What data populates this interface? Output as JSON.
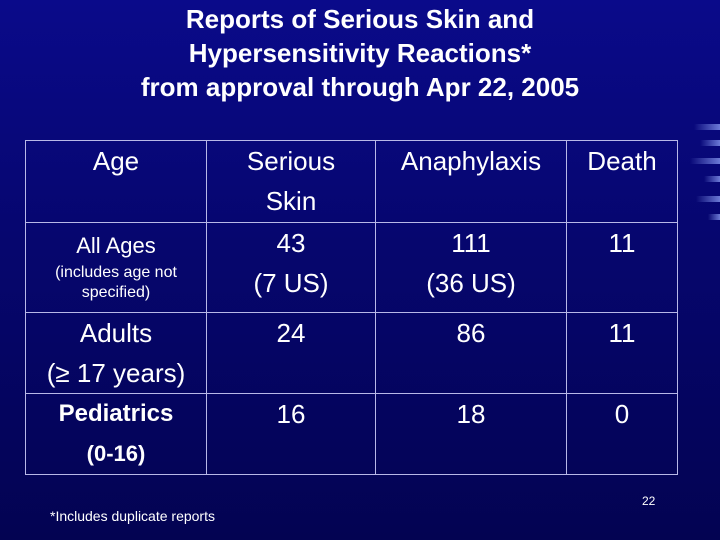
{
  "title": {
    "line1": "Reports of Serious Skin and",
    "line2": "Hypersensitivity Reactions*",
    "line3": "from approval through Apr 22, 2005"
  },
  "table": {
    "headers": [
      "Age",
      "Serious Skin",
      "Anaphylaxis",
      "Death"
    ],
    "header_skin_line1": "Serious",
    "header_skin_line2": "Skin",
    "rows": [
      {
        "age": "All Ages",
        "age_note_line1": "(includes age not",
        "age_note_line2": "specified)",
        "serious_skin": "43",
        "serious_skin_us": "(7 US)",
        "anaphylaxis": "111",
        "anaphylaxis_us": "(36 US)",
        "death": "11"
      },
      {
        "age_line1": "Adults",
        "age_line2": "(≥ 17 years)",
        "serious_skin": "24",
        "anaphylaxis": "86",
        "death": "11"
      },
      {
        "age_line1": "Pediatrics",
        "age_line2": "(0-16)",
        "serious_skin": "16",
        "anaphylaxis": "18",
        "death": "0"
      }
    ]
  },
  "footnote": "*Includes duplicate reports",
  "page_number": "22"
}
